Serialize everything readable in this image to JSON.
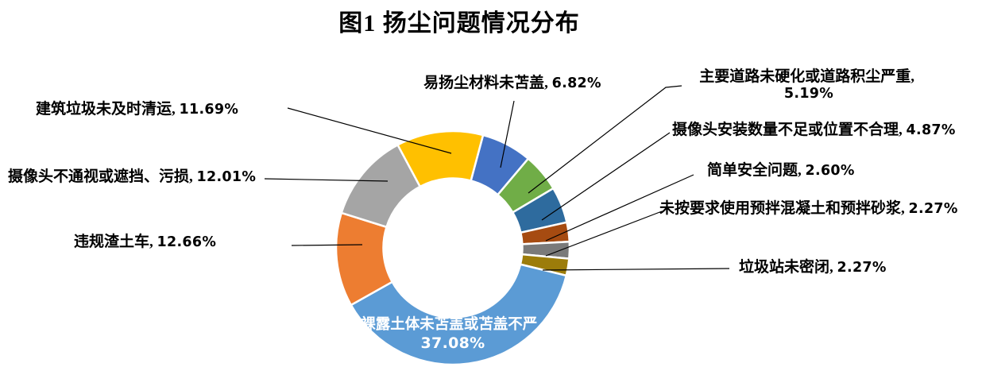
{
  "title": "图1 扬尘问题情况分布",
  "sep": ", ",
  "chart_data": {
    "type": "pie",
    "subtype": "donut",
    "title": "图1 扬尘问题情况分布",
    "legend_position": "none",
    "labels_style": "callout-with-leader-lines",
    "rotation_deg": 15,
    "slices": [
      {
        "name": "易扬尘材料未苫盖",
        "pct": "6.82%",
        "value": 6.82,
        "color": "#4472C4"
      },
      {
        "name": "主要道路未硬化或道路积尘严重",
        "pct": "5.19%",
        "value": 5.19,
        "color": "#70AD47"
      },
      {
        "name": "摄像头安装数量不足或位置不合理",
        "pct": "4.87%",
        "value": 4.87,
        "color": "#2E6B9E"
      },
      {
        "name": "简单安全问题",
        "pct": "2.60%",
        "value": 2.6,
        "color": "#A64B11"
      },
      {
        "name": "未按要求使用预拌混凝土和预拌砂浆",
        "pct": "2.27%",
        "value": 2.27,
        "color": "#7A7A7A"
      },
      {
        "name": "垃圾站未密闭",
        "pct": "2.27%",
        "value": 2.27,
        "color": "#9C7C0A"
      },
      {
        "name": "裸露土体未苫盖或苫盖不严",
        "pct": "37.08%",
        "value": 37.08,
        "color": "#5B9BD5"
      },
      {
        "name": "违规渣土车",
        "pct": "12.66%",
        "value": 12.66,
        "color": "#ED7D31"
      },
      {
        "name": "摄像头不通视或遮挡、污损",
        "pct": "12.01%",
        "value": 12.01,
        "color": "#A5A5A5"
      },
      {
        "name": "建筑垃圾未及时清运",
        "pct": "11.69%",
        "value": 11.69,
        "color": "#FFC000"
      }
    ]
  }
}
